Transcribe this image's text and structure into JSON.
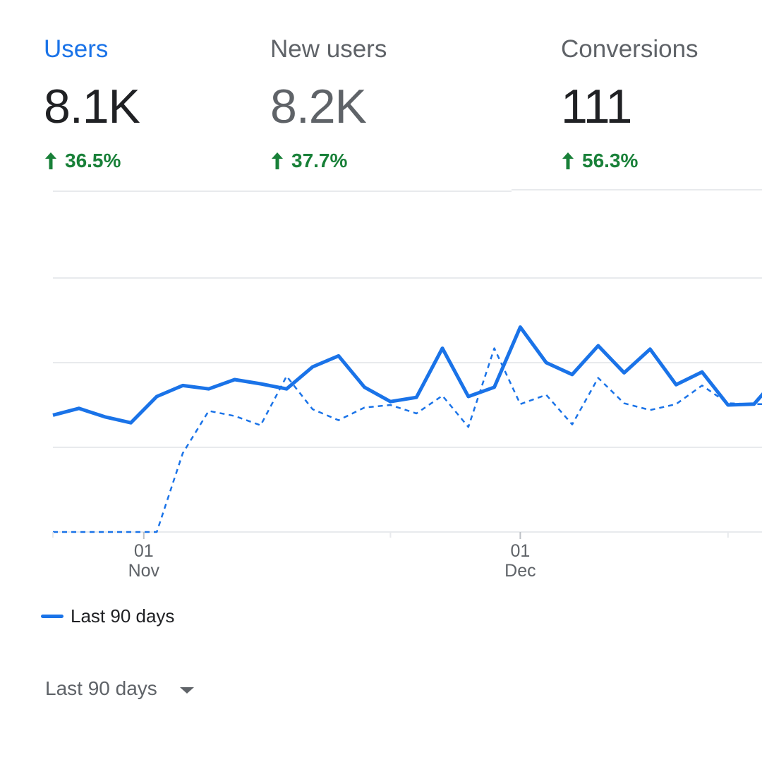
{
  "metrics": {
    "users": {
      "label": "Users",
      "value": "8.1K",
      "delta": "36.5%"
    },
    "new_users": {
      "label": "New users",
      "value": "8.2K",
      "delta": "37.7%"
    },
    "conversions": {
      "label": "Conversions",
      "value": "111",
      "delta": "56.3%"
    }
  },
  "colors": {
    "accent": "#1a73e8",
    "positive": "#188038",
    "grid": "#e8eaed",
    "muted": "#5f6368"
  },
  "icons": {
    "delta": "arrow-up-icon",
    "dropdown": "caret-down-icon"
  },
  "chart_data": {
    "type": "line",
    "title": "",
    "xlabel": "",
    "ylabel": "",
    "x_ticks": [
      {
        "day": "01",
        "month": "Nov",
        "index": 3.5
      },
      {
        "day": "01",
        "month": "Dec",
        "index": 18
      }
    ],
    "ylim": [
      0,
      4
    ],
    "grid": true,
    "legend_placement": "bottom-left",
    "series": [
      {
        "name": "Last 90 days",
        "style": "solid",
        "values": [
          1.38,
          1.46,
          1.36,
          1.29,
          1.6,
          1.73,
          1.69,
          1.8,
          1.75,
          1.69,
          1.95,
          2.08,
          1.71,
          1.54,
          1.59,
          2.17,
          1.6,
          1.71,
          2.42,
          2.0,
          1.86,
          2.2,
          1.88,
          2.16,
          1.74,
          1.89,
          1.5,
          1.51,
          1.86
        ]
      },
      {
        "name": "",
        "style": "dashed",
        "values": [
          0.0,
          0.0,
          0.0,
          0.0,
          0.0,
          0.93,
          1.43,
          1.37,
          1.26,
          1.84,
          1.45,
          1.32,
          1.47,
          1.5,
          1.4,
          1.61,
          1.24,
          2.17,
          1.51,
          1.62,
          1.27,
          1.82,
          1.52,
          1.44,
          1.51,
          1.73,
          1.52,
          1.51,
          1.51
        ]
      }
    ]
  },
  "legend": {
    "label": "Last 90 days"
  },
  "range_selector": {
    "label": "Last 90 days"
  }
}
